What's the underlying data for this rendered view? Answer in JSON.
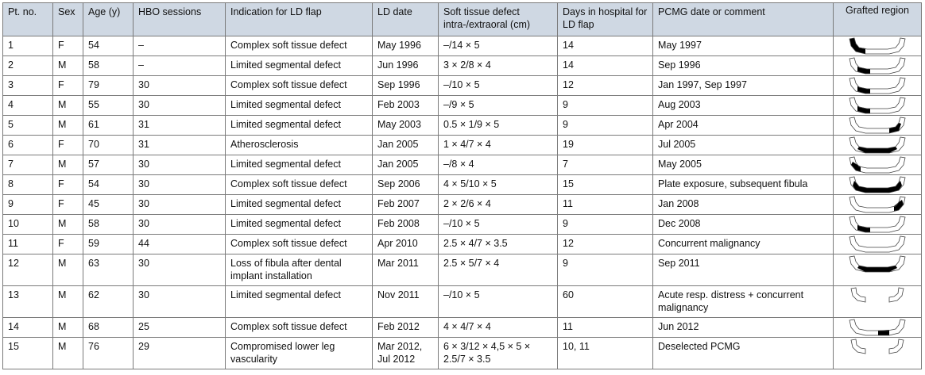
{
  "headers": [
    "Pt. no.",
    "Sex",
    "Age (y)",
    "HBO sessions",
    "Indication for LD flap",
    "LD date",
    "Soft tissue defect intra-/extraoral (cm)",
    "Days in hospital for LD flap",
    "PCMG date or comment",
    "Grafted region"
  ],
  "rows": [
    {
      "pt": "1",
      "sex": "F",
      "age": "54",
      "hbo": "–",
      "ind": "Complex soft tissue defect",
      "ld": "May 1996",
      "soft": "–/14 × 5",
      "days": "14",
      "pcmg": "May 1997",
      "graft": "left-ramus"
    },
    {
      "pt": "2",
      "sex": "M",
      "age": "58",
      "hbo": "–",
      "ind": "Limited segmental defect",
      "ld": "Jun 1996",
      "soft": "3 × 2/8 × 4",
      "days": "14",
      "pcmg": "Sep 1996",
      "graft": "left-body"
    },
    {
      "pt": "3",
      "sex": "F",
      "age": "79",
      "hbo": "30",
      "ind": "Complex soft tissue defect",
      "ld": "Sep 1996",
      "soft": "–/10 × 5",
      "days": "12",
      "pcmg": "Jan 1997, Sep 1997",
      "graft": "left-body"
    },
    {
      "pt": "4",
      "sex": "M",
      "age": "55",
      "hbo": "30",
      "ind": "Limited segmental defect",
      "ld": "Feb 2003",
      "soft": "–/9 × 5",
      "days": "9",
      "pcmg": "Aug 2003",
      "graft": "left-body"
    },
    {
      "pt": "5",
      "sex": "M",
      "age": "61",
      "hbo": "31",
      "ind": "Limited segmental defect",
      "ld": "May 2003",
      "soft": "0.5 × 1/9 × 5",
      "days": "9",
      "pcmg": "Apr 2004",
      "graft": "right-body"
    },
    {
      "pt": "6",
      "sex": "F",
      "age": "70",
      "hbo": "31",
      "ind": "Atherosclerosis",
      "ld": "Jan 2005",
      "soft": "1 × 4/7 × 4",
      "days": "19",
      "pcmg": "Jul 2005",
      "graft": "anterior-wide"
    },
    {
      "pt": "7",
      "sex": "M",
      "age": "57",
      "hbo": "30",
      "ind": "Limited segmental defect",
      "ld": "Jan 2005",
      "soft": "–/8 × 4",
      "days": "7",
      "pcmg": "May 2005",
      "graft": "left-angle"
    },
    {
      "pt": "8",
      "sex": "F",
      "age": "54",
      "hbo": "30",
      "ind": "Complex soft tissue defect",
      "ld": "Sep 2006",
      "soft": "4 × 5/10 × 5",
      "days": "15",
      "pcmg": "Plate exposure, subsequent fibula",
      "graft": "full"
    },
    {
      "pt": "9",
      "sex": "F",
      "age": "45",
      "hbo": "30",
      "ind": "Limited segmental defect",
      "ld": "Feb 2007",
      "soft": "2 × 2/6 × 4",
      "days": "11",
      "pcmg": "Jan 2008",
      "graft": "right-angle"
    },
    {
      "pt": "10",
      "sex": "M",
      "age": "58",
      "hbo": "30",
      "ind": "Limited segmental defect",
      "ld": "Feb 2008",
      "soft": "–/10 × 5",
      "days": "9",
      "pcmg": "Dec 2008",
      "graft": "left-body"
    },
    {
      "pt": "11",
      "sex": "F",
      "age": "59",
      "hbo": "44",
      "ind": "Complex soft tissue defect",
      "ld": "Apr 2010",
      "soft": "2.5 × 4/7 × 3.5",
      "days": "12",
      "pcmg": "Concurrent malignancy",
      "graft": "none"
    },
    {
      "pt": "12",
      "sex": "M",
      "age": "63",
      "hbo": "30",
      "ind": "Loss of fibula after dental implant installation",
      "ld": "Mar 2011",
      "soft": "2.5 × 5/7 × 4",
      "days": "9",
      "pcmg": "Sep 2011",
      "graft": "anterior-wide"
    },
    {
      "pt": "13",
      "sex": "M",
      "age": "62",
      "hbo": "30",
      "ind": "Limited segmental defect",
      "ld": "Nov 2011",
      "soft": "–/10 × 5",
      "days": "60",
      "pcmg": "Acute resp. distress + concurrent malignancy",
      "graft": "split"
    },
    {
      "pt": "14",
      "sex": "M",
      "age": "68",
      "hbo": "25",
      "ind": "Complex soft tissue defect",
      "ld": "Feb 2012",
      "soft": "4 × 4/7 × 4",
      "days": "11",
      "pcmg": "Jun 2012",
      "graft": "center-right"
    },
    {
      "pt": "15",
      "sex": "M",
      "age": "76",
      "hbo": "29",
      "ind": "Compromised lower leg vascularity",
      "ld": "Mar 2012, Jul 2012",
      "soft": "6 × 3/12 × 4,5 × 5 × 2.5/7 × 3.5",
      "days": "10, 11",
      "pcmg": "Deselected PCMG",
      "graft": "split"
    }
  ]
}
